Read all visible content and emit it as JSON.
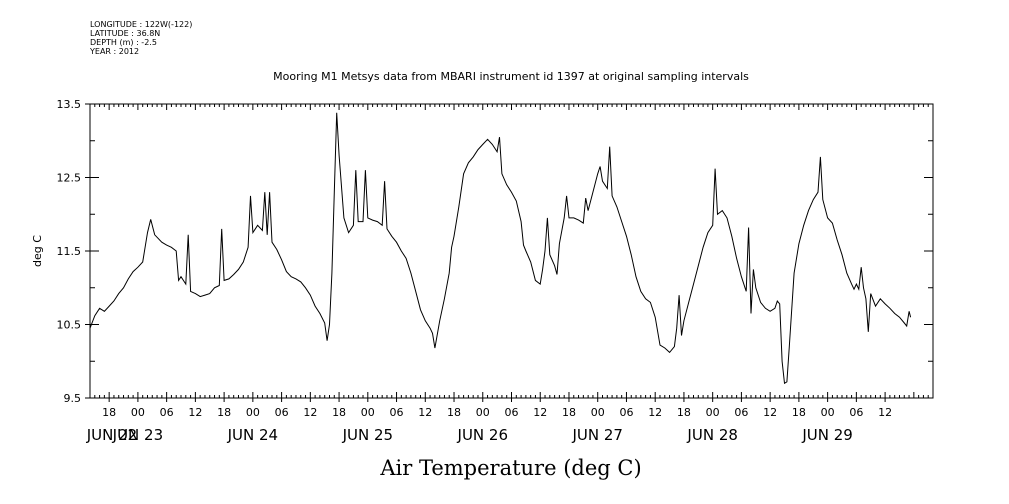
{
  "header": {
    "longitude": "LONGITUDE : 122W(-122)",
    "latitude": "LATITUDE : 36.8N",
    "depth": "DEPTH (m) : -2.5",
    "year": "YEAR : 2012"
  },
  "chart_data": {
    "type": "line",
    "title": "Mooring M1 Metsys data from MBARI instrument id 1397 at original sampling intervals",
    "xlabel": "Air Temperature (deg C)",
    "ylabel": "deg C",
    "ylim": [
      9.5,
      13.5
    ],
    "xlim": [
      "2012-06-22T14:00",
      "2012-06-29T22:00"
    ],
    "y_ticks": [
      9.5,
      10.5,
      11.5,
      12.5,
      13.5
    ],
    "x_hour_ticks": [
      {
        "t": "2012-06-22T18:00",
        "label": "18"
      },
      {
        "t": "2012-06-23T00:00",
        "label": "00"
      },
      {
        "t": "2012-06-23T06:00",
        "label": "06"
      },
      {
        "t": "2012-06-23T12:00",
        "label": "12"
      },
      {
        "t": "2012-06-23T18:00",
        "label": "18"
      },
      {
        "t": "2012-06-24T00:00",
        "label": "00"
      },
      {
        "t": "2012-06-24T06:00",
        "label": "06"
      },
      {
        "t": "2012-06-24T12:00",
        "label": "12"
      },
      {
        "t": "2012-06-24T18:00",
        "label": "18"
      },
      {
        "t": "2012-06-25T00:00",
        "label": "00"
      },
      {
        "t": "2012-06-25T06:00",
        "label": "06"
      },
      {
        "t": "2012-06-25T12:00",
        "label": "12"
      },
      {
        "t": "2012-06-25T18:00",
        "label": "18"
      },
      {
        "t": "2012-06-26T00:00",
        "label": "00"
      },
      {
        "t": "2012-06-26T06:00",
        "label": "06"
      },
      {
        "t": "2012-06-26T12:00",
        "label": "12"
      },
      {
        "t": "2012-06-26T18:00",
        "label": "18"
      },
      {
        "t": "2012-06-27T00:00",
        "label": "00"
      },
      {
        "t": "2012-06-27T06:00",
        "label": "06"
      },
      {
        "t": "2012-06-27T12:00",
        "label": "12"
      },
      {
        "t": "2012-06-27T18:00",
        "label": "18"
      },
      {
        "t": "2012-06-28T00:00",
        "label": "00"
      },
      {
        "t": "2012-06-28T06:00",
        "label": "06"
      },
      {
        "t": "2012-06-28T12:00",
        "label": "12"
      },
      {
        "t": "2012-06-28T18:00",
        "label": "18"
      },
      {
        "t": "2012-06-29T00:00",
        "label": "00"
      },
      {
        "t": "2012-06-29T06:00",
        "label": "06"
      },
      {
        "t": "2012-06-29T12:00",
        "label": "12"
      }
    ],
    "x_day_labels": [
      {
        "t": "2012-06-22T14:00",
        "label": "JUN 22"
      },
      {
        "t": "2012-06-23T00:00",
        "label": "JUN 23"
      },
      {
        "t": "2012-06-24T00:00",
        "label": "JUN 24"
      },
      {
        "t": "2012-06-25T00:00",
        "label": "JUN 25"
      },
      {
        "t": "2012-06-26T00:00",
        "label": "JUN 26"
      },
      {
        "t": "2012-06-27T00:00",
        "label": "JUN 27"
      },
      {
        "t": "2012-06-28T00:00",
        "label": "JUN 28"
      },
      {
        "t": "2012-06-29T00:00",
        "label": "JUN 29"
      }
    ],
    "series": [
      {
        "values": [
          [
            "2012-06-22T14:00",
            10.45
          ],
          [
            "2012-06-22T15:00",
            10.62
          ],
          [
            "2012-06-22T16:00",
            10.72
          ],
          [
            "2012-06-22T17:00",
            10.68
          ],
          [
            "2012-06-22T18:00",
            10.75
          ],
          [
            "2012-06-22T19:00",
            10.82
          ],
          [
            "2012-06-22T20:00",
            10.92
          ],
          [
            "2012-06-22T21:00",
            11.0
          ],
          [
            "2012-06-22T22:00",
            11.12
          ],
          [
            "2012-06-22T23:00",
            11.22
          ],
          [
            "2012-06-23T00:00",
            11.28
          ],
          [
            "2012-06-23T01:00",
            11.35
          ],
          [
            "2012-06-23T02:00",
            11.75
          ],
          [
            "2012-06-23T02:40",
            11.93
          ],
          [
            "2012-06-23T03:30",
            11.72
          ],
          [
            "2012-06-23T05:00",
            11.62
          ],
          [
            "2012-06-23T06:00",
            11.58
          ],
          [
            "2012-06-23T07:00",
            11.55
          ],
          [
            "2012-06-23T08:00",
            11.5
          ],
          [
            "2012-06-23T08:30",
            11.1
          ],
          [
            "2012-06-23T09:00",
            11.15
          ],
          [
            "2012-06-23T10:00",
            11.05
          ],
          [
            "2012-06-23T10:30",
            11.72
          ],
          [
            "2012-06-23T11:00",
            10.95
          ],
          [
            "2012-06-23T12:00",
            10.92
          ],
          [
            "2012-06-23T13:00",
            10.88
          ],
          [
            "2012-06-23T14:00",
            10.9
          ],
          [
            "2012-06-23T15:00",
            10.92
          ],
          [
            "2012-06-23T16:00",
            11.0
          ],
          [
            "2012-06-23T17:00",
            11.03
          ],
          [
            "2012-06-23T17:30",
            11.8
          ],
          [
            "2012-06-23T18:00",
            11.1
          ],
          [
            "2012-06-23T19:00",
            11.12
          ],
          [
            "2012-06-23T20:00",
            11.18
          ],
          [
            "2012-06-23T21:00",
            11.25
          ],
          [
            "2012-06-23T22:00",
            11.35
          ],
          [
            "2012-06-23T23:00",
            11.55
          ],
          [
            "2012-06-23T23:30",
            12.25
          ],
          [
            "2012-06-24T00:00",
            11.75
          ],
          [
            "2012-06-24T01:00",
            11.85
          ],
          [
            "2012-06-24T02:00",
            11.78
          ],
          [
            "2012-06-24T02:30",
            12.3
          ],
          [
            "2012-06-24T03:00",
            11.72
          ],
          [
            "2012-06-24T03:30",
            12.3
          ],
          [
            "2012-06-24T04:00",
            11.62
          ],
          [
            "2012-06-24T05:00",
            11.52
          ],
          [
            "2012-06-24T06:00",
            11.38
          ],
          [
            "2012-06-24T07:00",
            11.22
          ],
          [
            "2012-06-24T08:00",
            11.15
          ],
          [
            "2012-06-24T09:00",
            11.12
          ],
          [
            "2012-06-24T10:00",
            11.08
          ],
          [
            "2012-06-24T11:00",
            11.0
          ],
          [
            "2012-06-24T12:00",
            10.9
          ],
          [
            "2012-06-24T13:00",
            10.75
          ],
          [
            "2012-06-24T14:00",
            10.65
          ],
          [
            "2012-06-24T15:00",
            10.52
          ],
          [
            "2012-06-24T15:30",
            10.28
          ],
          [
            "2012-06-24T16:00",
            10.5
          ],
          [
            "2012-06-24T16:30",
            11.2
          ],
          [
            "2012-06-24T17:00",
            12.3
          ],
          [
            "2012-06-24T17:30",
            13.38
          ],
          [
            "2012-06-24T18:00",
            12.8
          ],
          [
            "2012-06-24T19:00",
            11.95
          ],
          [
            "2012-06-24T20:00",
            11.75
          ],
          [
            "2012-06-24T21:00",
            11.85
          ],
          [
            "2012-06-24T21:30",
            12.6
          ],
          [
            "2012-06-24T22:00",
            11.9
          ],
          [
            "2012-06-24T23:00",
            11.9
          ],
          [
            "2012-06-24T23:30",
            12.6
          ],
          [
            "2012-06-25T00:00",
            11.95
          ],
          [
            "2012-06-25T01:00",
            11.92
          ],
          [
            "2012-06-25T02:00",
            11.9
          ],
          [
            "2012-06-25T03:00",
            11.85
          ],
          [
            "2012-06-25T03:30",
            12.45
          ],
          [
            "2012-06-25T04:00",
            11.8
          ],
          [
            "2012-06-25T05:00",
            11.7
          ],
          [
            "2012-06-25T06:00",
            11.62
          ],
          [
            "2012-06-25T07:00",
            11.5
          ],
          [
            "2012-06-25T08:00",
            11.4
          ],
          [
            "2012-06-25T09:00",
            11.2
          ],
          [
            "2012-06-25T10:00",
            10.95
          ],
          [
            "2012-06-25T11:00",
            10.7
          ],
          [
            "2012-06-25T12:00",
            10.55
          ],
          [
            "2012-06-25T13:00",
            10.45
          ],
          [
            "2012-06-25T13:30",
            10.38
          ],
          [
            "2012-06-25T14:00",
            10.18
          ],
          [
            "2012-06-25T15:00",
            10.55
          ],
          [
            "2012-06-25T16:00",
            10.85
          ],
          [
            "2012-06-25T17:00",
            11.2
          ],
          [
            "2012-06-25T17:30",
            11.55
          ],
          [
            "2012-06-25T18:00",
            11.7
          ],
          [
            "2012-06-25T19:00",
            12.1
          ],
          [
            "2012-06-25T20:00",
            12.55
          ],
          [
            "2012-06-25T21:00",
            12.7
          ],
          [
            "2012-06-25T22:00",
            12.78
          ],
          [
            "2012-06-25T23:00",
            12.88
          ],
          [
            "2012-06-26T00:00",
            12.95
          ],
          [
            "2012-06-26T01:00",
            13.02
          ],
          [
            "2012-06-26T02:00",
            12.95
          ],
          [
            "2012-06-26T03:00",
            12.85
          ],
          [
            "2012-06-26T03:30",
            13.05
          ],
          [
            "2012-06-26T04:00",
            12.55
          ],
          [
            "2012-06-26T05:00",
            12.4
          ],
          [
            "2012-06-26T06:00",
            12.3
          ],
          [
            "2012-06-26T07:00",
            12.18
          ],
          [
            "2012-06-26T08:00",
            11.9
          ],
          [
            "2012-06-26T08:30",
            11.58
          ],
          [
            "2012-06-26T09:00",
            11.5
          ],
          [
            "2012-06-26T10:00",
            11.35
          ],
          [
            "2012-06-26T11:00",
            11.1
          ],
          [
            "2012-06-26T12:00",
            11.05
          ],
          [
            "2012-06-26T12:30",
            11.25
          ],
          [
            "2012-06-26T13:00",
            11.5
          ],
          [
            "2012-06-26T13:30",
            11.95
          ],
          [
            "2012-06-26T14:00",
            11.45
          ],
          [
            "2012-06-26T15:00",
            11.3
          ],
          [
            "2012-06-26T15:30",
            11.18
          ],
          [
            "2012-06-26T16:00",
            11.6
          ],
          [
            "2012-06-26T17:00",
            11.95
          ],
          [
            "2012-06-26T17:30",
            12.25
          ],
          [
            "2012-06-26T18:00",
            11.95
          ],
          [
            "2012-06-26T19:00",
            11.95
          ],
          [
            "2012-06-26T20:00",
            11.92
          ],
          [
            "2012-06-26T21:00",
            11.88
          ],
          [
            "2012-06-26T21:30",
            12.22
          ],
          [
            "2012-06-26T22:00",
            12.05
          ],
          [
            "2012-06-26T23:00",
            12.3
          ],
          [
            "2012-06-27T00:00",
            12.55
          ],
          [
            "2012-06-27T00:30",
            12.65
          ],
          [
            "2012-06-27T01:00",
            12.45
          ],
          [
            "2012-06-27T02:00",
            12.35
          ],
          [
            "2012-06-27T02:30",
            12.92
          ],
          [
            "2012-06-27T03:00",
            12.25
          ],
          [
            "2012-06-27T04:00",
            12.1
          ],
          [
            "2012-06-27T05:00",
            11.9
          ],
          [
            "2012-06-27T06:00",
            11.7
          ],
          [
            "2012-06-27T07:00",
            11.45
          ],
          [
            "2012-06-27T08:00",
            11.15
          ],
          [
            "2012-06-27T09:00",
            10.95
          ],
          [
            "2012-06-27T10:00",
            10.85
          ],
          [
            "2012-06-27T11:00",
            10.8
          ],
          [
            "2012-06-27T12:00",
            10.6
          ],
          [
            "2012-06-27T13:00",
            10.22
          ],
          [
            "2012-06-27T14:00",
            10.18
          ],
          [
            "2012-06-27T15:00",
            10.12
          ],
          [
            "2012-06-27T16:00",
            10.2
          ],
          [
            "2012-06-27T16:30",
            10.45
          ],
          [
            "2012-06-27T17:00",
            10.9
          ],
          [
            "2012-06-27T17:30",
            10.35
          ],
          [
            "2012-06-27T18:00",
            10.55
          ],
          [
            "2012-06-27T19:00",
            10.8
          ],
          [
            "2012-06-27T20:00",
            11.05
          ],
          [
            "2012-06-27T21:00",
            11.3
          ],
          [
            "2012-06-27T22:00",
            11.55
          ],
          [
            "2012-06-27T23:00",
            11.75
          ],
          [
            "2012-06-28T00:00",
            11.85
          ],
          [
            "2012-06-28T00:30",
            12.62
          ],
          [
            "2012-06-28T01:00",
            12.0
          ],
          [
            "2012-06-28T02:00",
            12.05
          ],
          [
            "2012-06-28T03:00",
            11.95
          ],
          [
            "2012-06-28T04:00",
            11.7
          ],
          [
            "2012-06-28T05:00",
            11.4
          ],
          [
            "2012-06-28T06:00",
            11.15
          ],
          [
            "2012-06-28T07:00",
            10.95
          ],
          [
            "2012-06-28T07:30",
            11.82
          ],
          [
            "2012-06-28T08:00",
            10.65
          ],
          [
            "2012-06-28T08:30",
            11.25
          ],
          [
            "2012-06-28T09:00",
            11.0
          ],
          [
            "2012-06-28T10:00",
            10.8
          ],
          [
            "2012-06-28T11:00",
            10.72
          ],
          [
            "2012-06-28T12:00",
            10.68
          ],
          [
            "2012-06-28T13:00",
            10.72
          ],
          [
            "2012-06-28T13:30",
            10.82
          ],
          [
            "2012-06-28T14:00",
            10.78
          ],
          [
            "2012-06-28T14:30",
            10.0
          ],
          [
            "2012-06-28T15:00",
            9.7
          ],
          [
            "2012-06-28T15:30",
            9.72
          ],
          [
            "2012-06-28T16:00",
            10.2
          ],
          [
            "2012-06-28T17:00",
            11.2
          ],
          [
            "2012-06-28T18:00",
            11.6
          ],
          [
            "2012-06-28T19:00",
            11.85
          ],
          [
            "2012-06-28T20:00",
            12.05
          ],
          [
            "2012-06-28T21:00",
            12.2
          ],
          [
            "2012-06-28T22:00",
            12.3
          ],
          [
            "2012-06-28T22:30",
            12.78
          ],
          [
            "2012-06-28T23:00",
            12.2
          ],
          [
            "2012-06-29T00:00",
            11.95
          ],
          [
            "2012-06-29T01:00",
            11.88
          ],
          [
            "2012-06-29T02:00",
            11.65
          ],
          [
            "2012-06-29T03:00",
            11.45
          ],
          [
            "2012-06-29T04:00",
            11.2
          ],
          [
            "2012-06-29T05:00",
            11.05
          ],
          [
            "2012-06-29T05:30",
            10.98
          ],
          [
            "2012-06-29T06:00",
            11.05
          ],
          [
            "2012-06-29T06:30",
            10.98
          ],
          [
            "2012-06-29T07:00",
            11.28
          ],
          [
            "2012-06-29T07:30",
            11.0
          ],
          [
            "2012-06-29T08:00",
            10.85
          ],
          [
            "2012-06-29T08:30",
            10.4
          ],
          [
            "2012-06-29T09:00",
            10.92
          ],
          [
            "2012-06-29T10:00",
            10.75
          ],
          [
            "2012-06-29T11:00",
            10.85
          ],
          [
            "2012-06-29T12:00",
            10.78
          ],
          [
            "2012-06-29T13:00",
            10.72
          ],
          [
            "2012-06-29T14:00",
            10.65
          ],
          [
            "2012-06-29T15:00",
            10.6
          ],
          [
            "2012-06-29T16:00",
            10.52
          ],
          [
            "2012-06-29T16:30",
            10.48
          ],
          [
            "2012-06-29T17:00",
            10.68
          ],
          [
            "2012-06-29T17:20",
            10.6
          ]
        ]
      }
    ]
  }
}
